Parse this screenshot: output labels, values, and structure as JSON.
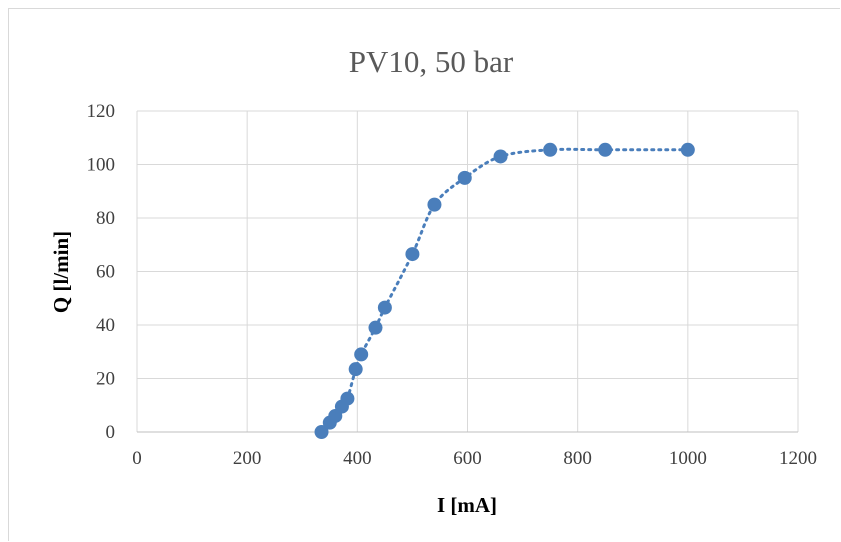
{
  "chart_data": {
    "type": "scatter",
    "title": "PV10, 50 bar",
    "xlabel": "I [mA]",
    "ylabel": "Q [l/min]",
    "xlim": [
      0,
      1200
    ],
    "ylim": [
      0,
      120
    ],
    "x_ticks": [
      "0",
      "200",
      "400",
      "600",
      "800",
      "1000",
      "1200"
    ],
    "y_ticks": [
      "0",
      "20",
      "40",
      "60",
      "80",
      "100",
      "120"
    ],
    "grid": true,
    "legend": "none",
    "trendline": "dotted",
    "series": [
      {
        "color": "#4a7ebb",
        "x": [
          335,
          350,
          360,
          372,
          382,
          397,
          407,
          433,
          450,
          500,
          540,
          595,
          660,
          750,
          850,
          1000
        ],
        "y": [
          0,
          3.5,
          6,
          9.5,
          12.5,
          23.5,
          29,
          39,
          46.5,
          66.5,
          85,
          95,
          103,
          105.5,
          105.5,
          105.5
        ]
      }
    ]
  }
}
